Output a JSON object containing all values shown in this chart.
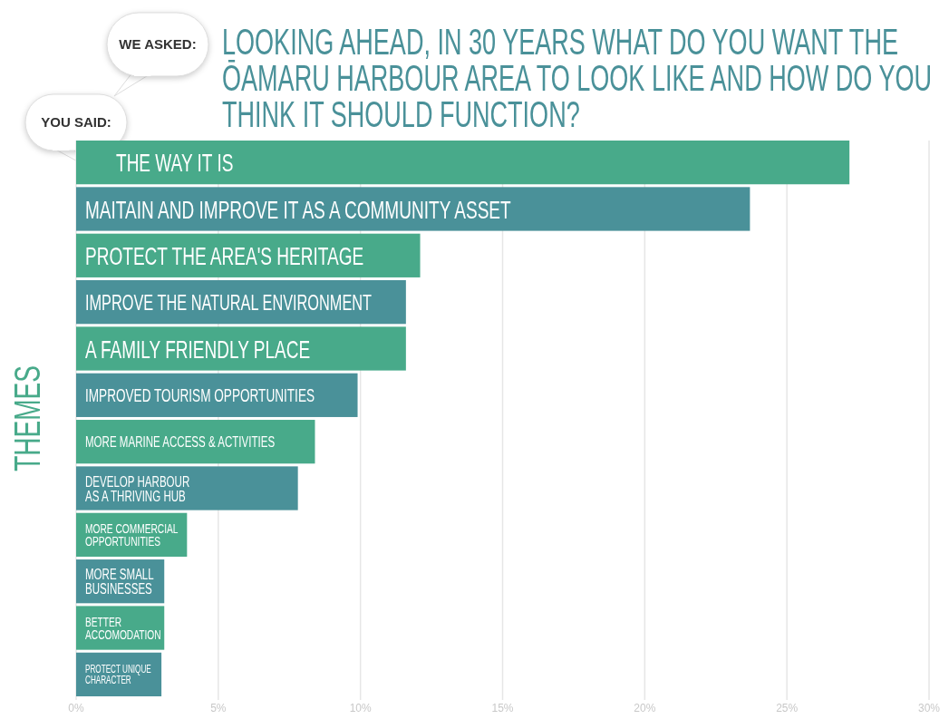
{
  "chart_data": {
    "type": "bar",
    "orientation": "horizontal",
    "title": "LOOKING AHEAD, IN 30 YEARS WHAT DO YOU WANT THE ŌAMARU HARBOUR AREA TO LOOK LIKE AND HOW DO YOU THINK IT SHOULD FUNCTION?",
    "ylabel": "THEMES",
    "annotations": [
      "WE ASKED:",
      "YOU SAID:"
    ],
    "categories": [
      "THE WAY IT IS",
      "MAITAIN AND IMPROVE IT AS A COMMUNITY ASSET",
      "PROTECT THE AREA'S HERITAGE",
      "IMPROVE THE NATURAL ENVIRONMENT",
      "A FAMILY FRIENDLY PLACE",
      "IMPROVED TOURISM OPPORTUNITIES",
      "MORE MARINE ACCESS & ACTIVITIES",
      "DEVELOP HARBOUR AS A THRIVING HUB",
      "MORE COMMERCIAL OPPORTUNITIES",
      "MORE SMALL BUSINESSES",
      "BETTER ACCOMODATION",
      "PROTECT UNIQUE CHARACTER"
    ],
    "values": [
      27.2,
      23.7,
      12.1,
      11.6,
      11.6,
      9.9,
      8.4,
      7.8,
      3.9,
      3.1,
      3.1,
      3.0
    ],
    "colors": [
      "#48aa8a",
      "#4a9199",
      "#48aa8a",
      "#4a9199",
      "#48aa8a",
      "#4a9199",
      "#48aa8a",
      "#4a9199",
      "#48aa8a",
      "#4a9199",
      "#48aa8a",
      "#4a9199"
    ],
    "xlim": [
      0,
      30
    ],
    "xticks": [
      {
        "value": 0,
        "label": "0%"
      },
      {
        "value": 5,
        "label": "5%"
      },
      {
        "value": 10,
        "label": "10%"
      },
      {
        "value": 15,
        "label": "15%"
      },
      {
        "value": 20,
        "label": "20%"
      },
      {
        "value": 25,
        "label": "25%"
      },
      {
        "value": 30,
        "label": "30%"
      }
    ],
    "grid": "x"
  }
}
